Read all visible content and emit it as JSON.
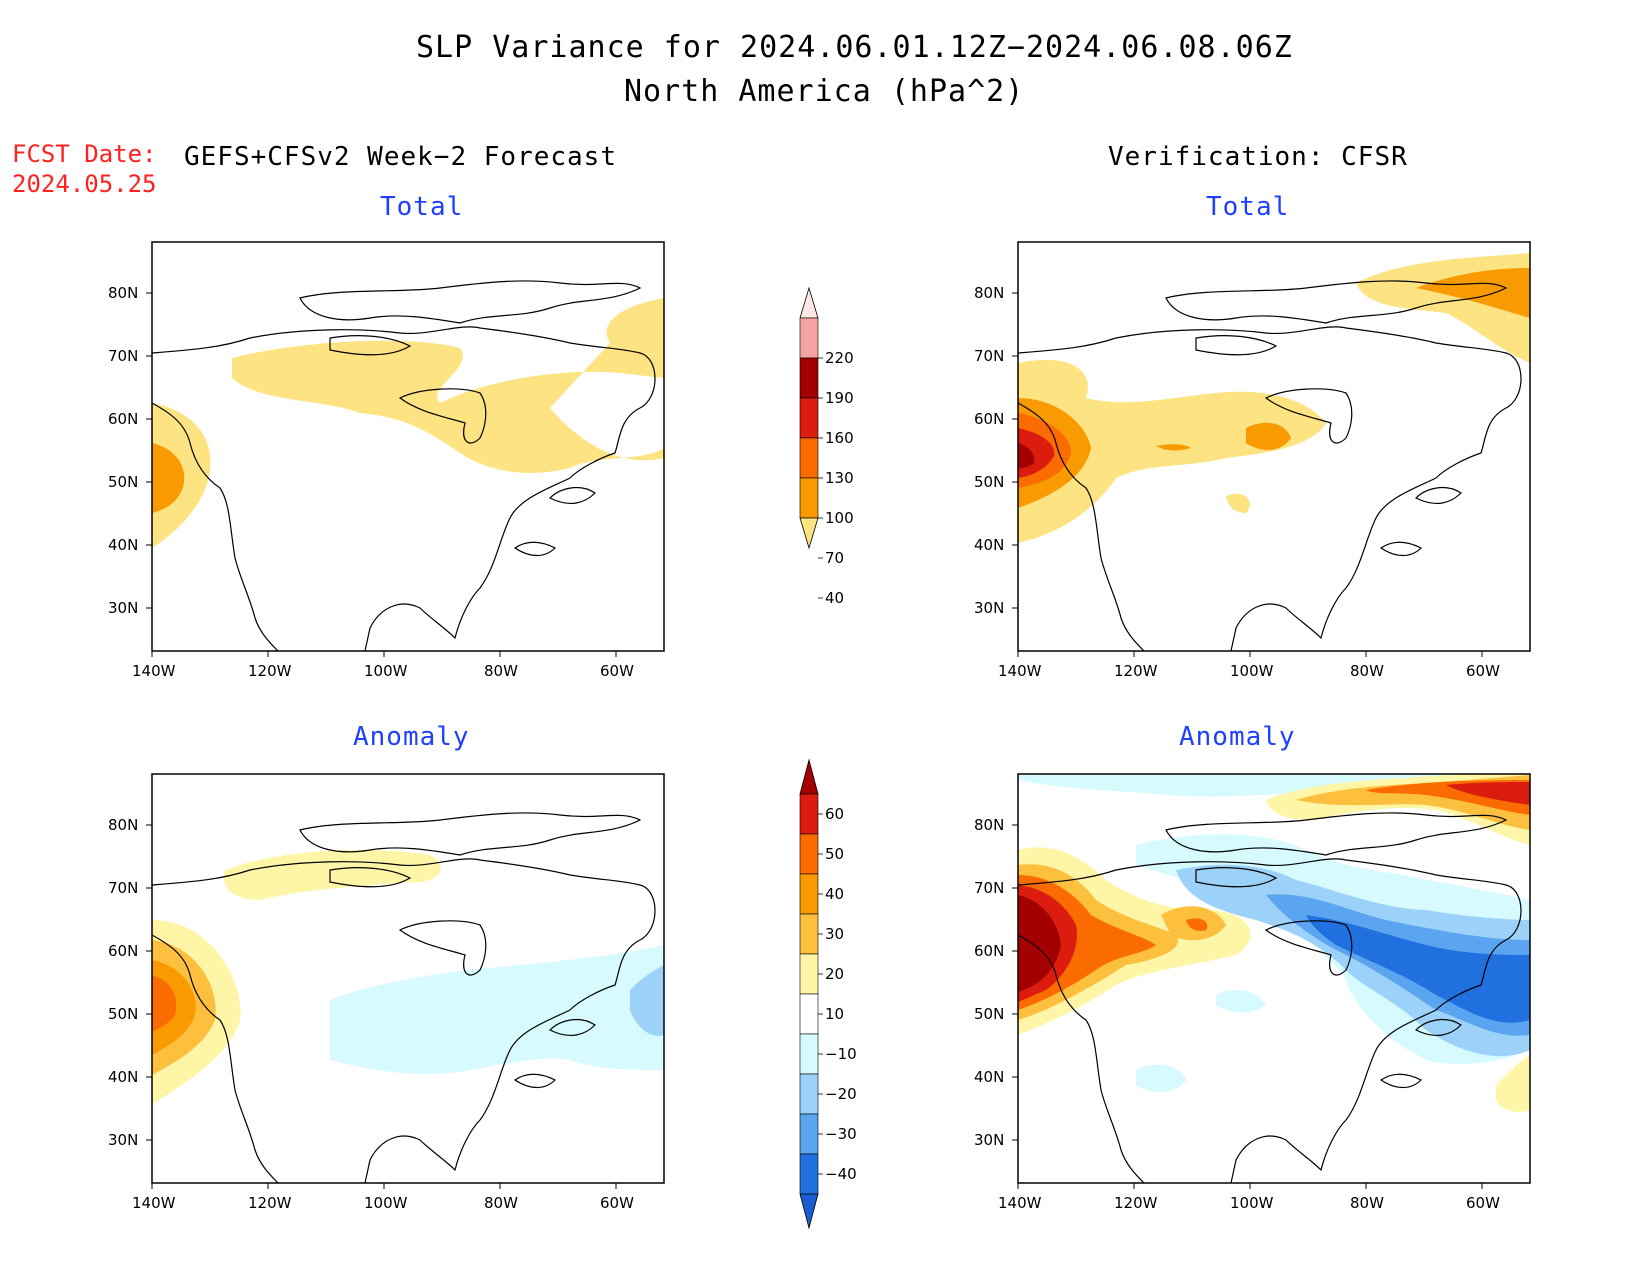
{
  "title": {
    "line1": "SLP Variance for 2024.06.01.12Z−2024.06.08.06Z",
    "line2": "North America (hPa^2)"
  },
  "fcst": {
    "label": "FCST Date:",
    "date": "2024.05.25"
  },
  "headers": {
    "left": "GEFS+CFSv2 Week−2 Forecast",
    "right": "Verification: CFSR"
  },
  "panels": {
    "fc_total": {
      "title": "Total"
    },
    "ver_total": {
      "title": "Total"
    },
    "fc_anom": {
      "title": "Anomaly"
    },
    "ver_anom": {
      "title": "Anomaly"
    }
  },
  "axes": {
    "lat_labels": [
      "80N",
      "70N",
      "60N",
      "50N",
      "40N",
      "30N"
    ],
    "lon_labels": [
      "140W",
      "120W",
      "100W",
      "80W",
      "60W"
    ]
  },
  "colorbars": {
    "total": {
      "labels": [
        "220",
        "190",
        "160",
        "130",
        "100",
        "70",
        "40"
      ],
      "colors": [
        "#fde8e4",
        "#f4a3a3",
        "#a50000",
        "#dc1c0f",
        "#fa6b00",
        "#f99a00",
        "#fde381"
      ]
    },
    "anomaly": {
      "labels": [
        "60",
        "50",
        "40",
        "30",
        "20",
        "10",
        "−10",
        "−20",
        "−30",
        "−40"
      ],
      "colors": [
        "#a50000",
        "#dc1c0f",
        "#fa6b00",
        "#f99a00",
        "#fcbf3e",
        "#fef6a6",
        "#ffffff",
        "#d7faff",
        "#9cd2fa",
        "#5ba5f0",
        "#2070e0",
        "#1c5cd2"
      ]
    }
  },
  "palette": {
    "pale_yellow": "#fef6a6",
    "yellow": "#fde381",
    "light_orange": "#fcbf3e",
    "orange": "#f99a00",
    "dark_orange": "#fa6b00",
    "red": "#dc1c0f",
    "dark_red": "#a50000",
    "pale_cyan": "#d7faff",
    "light_blue": "#9cd2fa",
    "mid_blue": "#5ba5f0",
    "blue": "#2070e0",
    "dark_blue": "#1c5cd2"
  }
}
